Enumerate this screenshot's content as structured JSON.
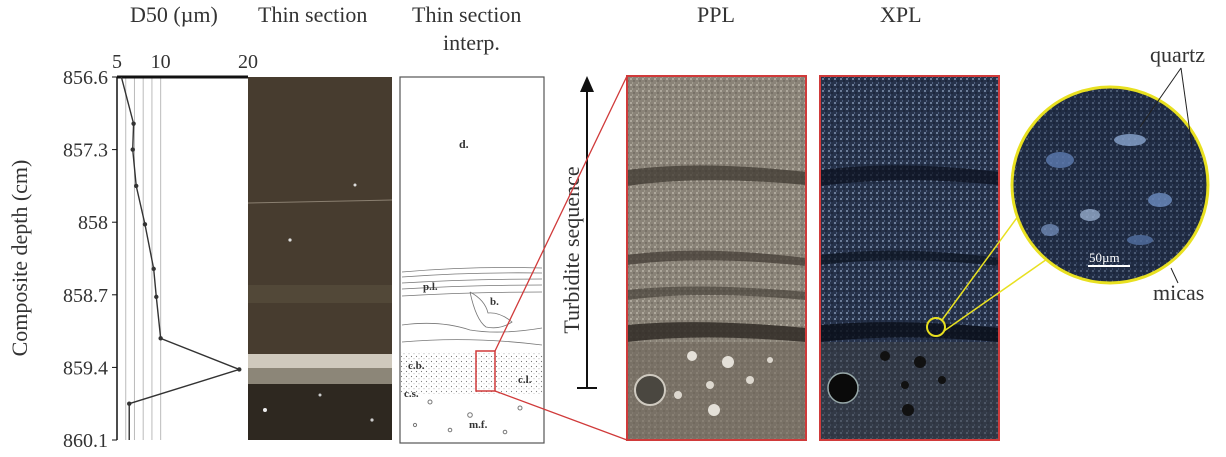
{
  "panels": {
    "d50": {
      "title": "D50 (µm)"
    },
    "thin_section": {
      "title": "Thin section"
    },
    "interp": {
      "title_line1": "Thin section",
      "title_line2": "interp."
    },
    "ppl": {
      "title": "PPL"
    },
    "xpl": {
      "title": "XPL"
    }
  },
  "depth_axis": {
    "label": "Composite depth (cm)",
    "ticks": [
      "856.6",
      "857.3",
      "858",
      "858.7",
      "859.4",
      "860.1"
    ]
  },
  "interp_labels": {
    "d": "d.",
    "pl": "p.l.",
    "b": "b.",
    "cb": "c.b.",
    "cl": "c.l.",
    "cs": "c.s.",
    "mf": "m.f."
  },
  "sequence_label": "Turbidite sequence",
  "callouts": {
    "quartz": "quartz",
    "micas": "micas",
    "scale": "50µm"
  },
  "colors": {
    "highlight_box": "#d03a3a",
    "zoom_circle": "#e8e020",
    "profile_line": "#333333"
  },
  "chart_data": {
    "type": "line",
    "title": "D50 (µm)",
    "xlabel": "D50 (µm)",
    "ylabel": "Composite depth (cm)",
    "xlim": [
      5,
      20
    ],
    "ylim": [
      860.1,
      856.6
    ],
    "x_ticks": [
      5,
      10,
      20
    ],
    "y_ticks": [
      856.6,
      857.3,
      858,
      858.7,
      859.4,
      860.1
    ],
    "grid": true,
    "series": [
      {
        "x": [
          5.5,
          6.9,
          6.8,
          7.2,
          8.2,
          9.2,
          9.5,
          10.0,
          19.0,
          6.4,
          6.4
        ],
        "y": [
          856.6,
          857.05,
          857.3,
          857.65,
          858.02,
          858.45,
          858.72,
          859.12,
          859.42,
          859.75,
          860.1
        ]
      }
    ]
  }
}
